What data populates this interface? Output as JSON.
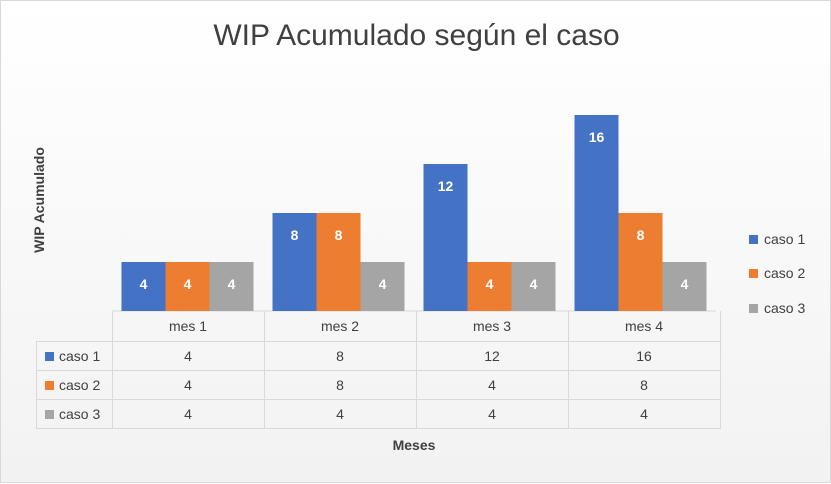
{
  "chart_data": {
    "type": "bar",
    "title": "WIP Acumulado según el caso",
    "xlabel": "Meses",
    "ylabel": "WIP Acumulado",
    "categories": [
      "mes 1",
      "mes 2",
      "mes 3",
      "mes 4"
    ],
    "series": [
      {
        "name": "caso 1",
        "color": "#4472C4",
        "values": [
          4,
          8,
          12,
          16
        ]
      },
      {
        "name": "caso 2",
        "color": "#ED7D31",
        "values": [
          4,
          8,
          4,
          8
        ]
      },
      {
        "name": "caso 3",
        "color": "#A5A5A5",
        "values": [
          4,
          4,
          4,
          4
        ]
      }
    ],
    "ylim": [
      0,
      16
    ],
    "legend": "right",
    "grid": false,
    "data_labels": true,
    "data_table": true
  }
}
